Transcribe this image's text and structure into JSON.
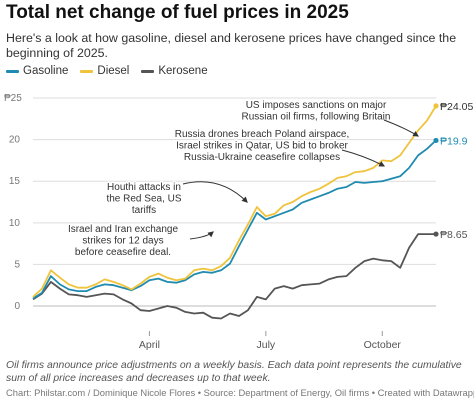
{
  "title": "Total net change of fuel prices in 2025",
  "subtitle": "Here's a look at how gasoline, diesel and kerosene prices have changed since the beginning of 2025.",
  "note": "Oil firms announce price adjustments on a weekly basis. Each data point represents the cumulative sum of all price increases and decreases up to that week.",
  "credit": "Chart: Philstar.com / Dominique Nicole Flores • Source: Department of Energy, Oil firms • Created with Datawrapper",
  "colors": {
    "gasoline": "#1f8bb0",
    "diesel": "#f0c33c",
    "kerosene": "#555555",
    "grid": "#dddddd",
    "axis": "#bbbbbb"
  },
  "chart_data": {
    "type": "line",
    "title": "Total net change of fuel prices in 2025",
    "ylabel": "",
    "xlabel": "",
    "ylim": [
      -3,
      25
    ],
    "xlim": [
      1,
      46
    ],
    "y_ticks": [
      0,
      5,
      10,
      15,
      20
    ],
    "y_tick_labels": [
      "0",
      "5",
      "10",
      "15",
      "20"
    ],
    "y_top_label": "₱25",
    "x_ticks": [
      {
        "week": 14,
        "label": "April"
      },
      {
        "week": 27,
        "label": "July"
      },
      {
        "week": 40,
        "label": "October"
      }
    ],
    "grid": true,
    "legend": "top-left",
    "x": [
      1,
      2,
      3,
      4,
      5,
      6,
      7,
      8,
      9,
      10,
      11,
      12,
      13,
      14,
      15,
      16,
      17,
      18,
      19,
      20,
      21,
      22,
      23,
      24,
      25,
      26,
      27,
      28,
      29,
      30,
      31,
      32,
      33,
      34,
      35,
      36,
      37,
      38,
      39,
      40,
      41,
      42,
      43,
      44,
      45,
      46
    ],
    "series": [
      {
        "name": "Gasoline",
        "values": [
          0.9,
          1.6,
          3.6,
          2.6,
          2.0,
          1.8,
          1.8,
          2.3,
          2.6,
          2.5,
          2.2,
          1.9,
          2.4,
          3.1,
          3.3,
          2.9,
          2.8,
          3.1,
          3.8,
          4.1,
          4.0,
          4.3,
          5.1,
          7.2,
          9.2,
          11.2,
          10.4,
          10.8,
          11.2,
          11.6,
          12.4,
          12.8,
          13.2,
          13.6,
          14.1,
          14.3,
          14.9,
          14.8,
          14.9,
          15.0,
          15.3,
          15.6,
          16.6,
          18.1,
          18.9,
          19.9
        ],
        "end_label": "₱19.9"
      },
      {
        "name": "Diesel",
        "values": [
          1.1,
          2.1,
          4.3,
          3.4,
          2.6,
          2.2,
          2.2,
          2.6,
          3.2,
          2.9,
          2.5,
          2.0,
          2.7,
          3.5,
          3.9,
          3.4,
          3.1,
          3.3,
          4.3,
          4.5,
          4.3,
          4.8,
          5.8,
          7.9,
          9.8,
          11.9,
          10.8,
          11.1,
          12.1,
          12.5,
          13.2,
          13.7,
          14.1,
          14.7,
          15.4,
          15.6,
          16.1,
          16.2,
          16.6,
          17.5,
          17.4,
          18.1,
          19.6,
          21.1,
          22.3,
          24.05
        ],
        "end_label": "₱24.05"
      },
      {
        "name": "Kerosene",
        "values": [
          0.8,
          1.5,
          2.9,
          2.1,
          1.4,
          1.3,
          1.1,
          1.3,
          1.5,
          1.4,
          0.8,
          0.3,
          -0.5,
          -0.6,
          -0.3,
          0.0,
          -0.2,
          -0.7,
          -0.9,
          -0.8,
          -1.4,
          -1.5,
          -0.9,
          -1.2,
          -0.5,
          1.1,
          0.8,
          2.1,
          2.4,
          2.1,
          2.5,
          2.6,
          2.7,
          3.2,
          3.5,
          3.6,
          4.6,
          5.4,
          5.7,
          5.5,
          5.4,
          4.6,
          7.0,
          8.65,
          8.65,
          8.65
        ],
        "end_label": "₱8.65"
      }
    ],
    "annotations": [
      {
        "lines": [
          "US imposes sanctions on major",
          "Russian oil firms, following Britain"
        ]
      },
      {
        "lines": [
          "Russia drones breach Poland airspace,",
          "Israel strikes in Qatar, US bid to broker",
          "Russia-Ukraine ceasefire collapses"
        ]
      },
      {
        "lines": [
          "Houthi attacks in",
          "the Red Sea, US",
          "tariffs"
        ]
      },
      {
        "lines": [
          "Israel and Iran exchange",
          "strikes for 12 days",
          "before ceasefire deal."
        ]
      }
    ]
  }
}
